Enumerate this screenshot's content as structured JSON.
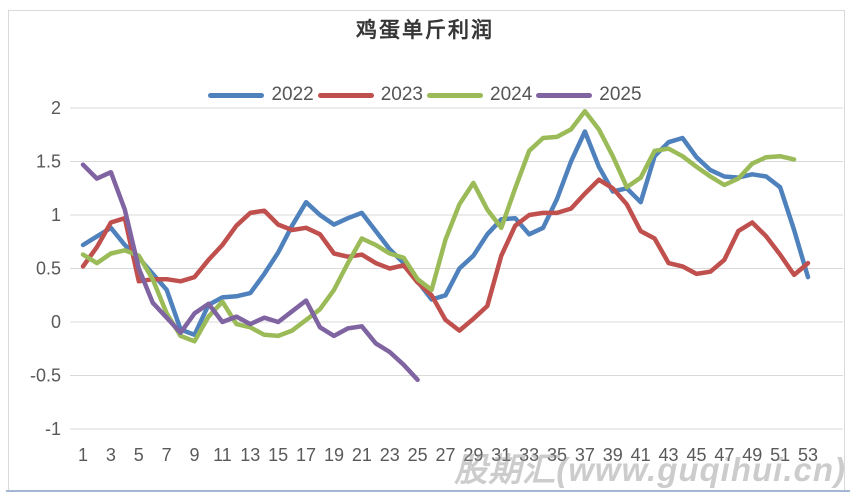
{
  "title": "鸡蛋单斤利润",
  "watermark": "股期汇(www.guqihui.cn)",
  "colors": {
    "grid": "#d9d9d9",
    "frame": "#d9d9d9",
    "bottom_border": "#a3b6d3",
    "tick_text": "#595959"
  },
  "chart_data": {
    "type": "line",
    "title": "鸡蛋单斤利润",
    "xlabel": "",
    "ylabel": "",
    "xlim": [
      1,
      53
    ],
    "ylim": [
      -1,
      2
    ],
    "xticks": [
      1,
      3,
      5,
      7,
      9,
      11,
      13,
      15,
      17,
      19,
      21,
      23,
      25,
      27,
      29,
      31,
      33,
      35,
      37,
      39,
      41,
      43,
      45,
      47,
      49,
      51,
      53
    ],
    "yticks": [
      2,
      1.5,
      1,
      0.5,
      0,
      -0.5,
      -1
    ],
    "grid": true,
    "legend_position": "top",
    "series": [
      {
        "name": "2022",
        "color": "#4F81BD",
        "points": [
          [
            1,
            0.72
          ],
          [
            2,
            0.8
          ],
          [
            3,
            0.88
          ],
          [
            4,
            0.72
          ],
          [
            5,
            0.6
          ],
          [
            6,
            0.45
          ],
          [
            7,
            0.3
          ],
          [
            8,
            -0.07
          ],
          [
            9,
            -0.12
          ],
          [
            10,
            0.16
          ],
          [
            11,
            0.23
          ],
          [
            12,
            0.24
          ],
          [
            13,
            0.27
          ],
          [
            14,
            0.45
          ],
          [
            15,
            0.65
          ],
          [
            16,
            0.9
          ],
          [
            17,
            1.12
          ],
          [
            18,
            1.0
          ],
          [
            19,
            0.91
          ],
          [
            20,
            0.97
          ],
          [
            21,
            1.02
          ],
          [
            22,
            0.85
          ],
          [
            23,
            0.68
          ],
          [
            24,
            0.55
          ],
          [
            25,
            0.38
          ],
          [
            26,
            0.21
          ],
          [
            27,
            0.25
          ],
          [
            28,
            0.5
          ],
          [
            29,
            0.62
          ],
          [
            30,
            0.82
          ],
          [
            31,
            0.96
          ],
          [
            32,
            0.97
          ],
          [
            33,
            0.82
          ],
          [
            34,
            0.88
          ],
          [
            35,
            1.15
          ],
          [
            36,
            1.5
          ],
          [
            37,
            1.78
          ],
          [
            38,
            1.45
          ],
          [
            39,
            1.22
          ],
          [
            40,
            1.25
          ],
          [
            41,
            1.12
          ],
          [
            42,
            1.55
          ],
          [
            43,
            1.68
          ],
          [
            44,
            1.72
          ],
          [
            45,
            1.54
          ],
          [
            46,
            1.42
          ],
          [
            47,
            1.36
          ],
          [
            48,
            1.35
          ],
          [
            49,
            1.38
          ],
          [
            50,
            1.36
          ],
          [
            51,
            1.26
          ],
          [
            52,
            0.86
          ],
          [
            53,
            0.42
          ]
        ]
      },
      {
        "name": "2023",
        "color": "#C0504D",
        "points": [
          [
            1,
            0.52
          ],
          [
            2,
            0.7
          ],
          [
            3,
            0.93
          ],
          [
            4,
            0.97
          ],
          [
            5,
            0.38
          ],
          [
            6,
            0.4
          ],
          [
            7,
            0.4
          ],
          [
            8,
            0.38
          ],
          [
            9,
            0.42
          ],
          [
            10,
            0.58
          ],
          [
            11,
            0.72
          ],
          [
            12,
            0.9
          ],
          [
            13,
            1.02
          ],
          [
            14,
            1.04
          ],
          [
            15,
            0.91
          ],
          [
            16,
            0.86
          ],
          [
            17,
            0.88
          ],
          [
            18,
            0.82
          ],
          [
            19,
            0.64
          ],
          [
            20,
            0.61
          ],
          [
            21,
            0.63
          ],
          [
            22,
            0.55
          ],
          [
            23,
            0.5
          ],
          [
            24,
            0.53
          ],
          [
            25,
            0.37
          ],
          [
            26,
            0.25
          ],
          [
            27,
            0.02
          ],
          [
            28,
            -0.08
          ],
          [
            29,
            0.03
          ],
          [
            30,
            0.15
          ],
          [
            31,
            0.62
          ],
          [
            32,
            0.9
          ],
          [
            33,
            1.0
          ],
          [
            34,
            1.02
          ],
          [
            35,
            1.02
          ],
          [
            36,
            1.06
          ],
          [
            37,
            1.2
          ],
          [
            38,
            1.33
          ],
          [
            39,
            1.25
          ],
          [
            40,
            1.1
          ],
          [
            41,
            0.85
          ],
          [
            42,
            0.78
          ],
          [
            43,
            0.55
          ],
          [
            44,
            0.52
          ],
          [
            45,
            0.45
          ],
          [
            46,
            0.47
          ],
          [
            47,
            0.58
          ],
          [
            48,
            0.85
          ],
          [
            49,
            0.93
          ],
          [
            50,
            0.8
          ],
          [
            51,
            0.63
          ],
          [
            52,
            0.44
          ],
          [
            53,
            0.55
          ]
        ]
      },
      {
        "name": "2024",
        "color": "#9BBB59",
        "points": [
          [
            1,
            0.63
          ],
          [
            2,
            0.55
          ],
          [
            3,
            0.64
          ],
          [
            4,
            0.67
          ],
          [
            5,
            0.62
          ],
          [
            6,
            0.4
          ],
          [
            7,
            0.08
          ],
          [
            8,
            -0.13
          ],
          [
            9,
            -0.18
          ],
          [
            10,
            0.05
          ],
          [
            11,
            0.19
          ],
          [
            12,
            -0.02
          ],
          [
            13,
            -0.05
          ],
          [
            14,
            -0.12
          ],
          [
            15,
            -0.13
          ],
          [
            16,
            -0.08
          ],
          [
            17,
            0.02
          ],
          [
            18,
            0.12
          ],
          [
            19,
            0.3
          ],
          [
            20,
            0.55
          ],
          [
            21,
            0.78
          ],
          [
            22,
            0.72
          ],
          [
            23,
            0.64
          ],
          [
            24,
            0.6
          ],
          [
            25,
            0.4
          ],
          [
            26,
            0.3
          ],
          [
            27,
            0.77
          ],
          [
            28,
            1.1
          ],
          [
            29,
            1.3
          ],
          [
            30,
            1.05
          ],
          [
            31,
            0.88
          ],
          [
            32,
            1.25
          ],
          [
            33,
            1.6
          ],
          [
            34,
            1.72
          ],
          [
            35,
            1.73
          ],
          [
            36,
            1.8
          ],
          [
            37,
            1.97
          ],
          [
            38,
            1.8
          ],
          [
            39,
            1.55
          ],
          [
            40,
            1.26
          ],
          [
            41,
            1.35
          ],
          [
            42,
            1.6
          ],
          [
            43,
            1.62
          ],
          [
            44,
            1.55
          ],
          [
            45,
            1.45
          ],
          [
            46,
            1.36
          ],
          [
            47,
            1.28
          ],
          [
            48,
            1.34
          ],
          [
            49,
            1.48
          ],
          [
            50,
            1.54
          ],
          [
            51,
            1.55
          ],
          [
            52,
            1.52
          ]
        ]
      },
      {
        "name": "2025",
        "color": "#8064A2",
        "points": [
          [
            1,
            1.47
          ],
          [
            2,
            1.34
          ],
          [
            3,
            1.4
          ],
          [
            4,
            1.05
          ],
          [
            5,
            0.5
          ],
          [
            6,
            0.18
          ],
          [
            7,
            0.04
          ],
          [
            8,
            -0.1
          ],
          [
            9,
            0.08
          ],
          [
            10,
            0.17
          ],
          [
            11,
            0.0
          ],
          [
            12,
            0.05
          ],
          [
            13,
            -0.02
          ],
          [
            14,
            0.04
          ],
          [
            15,
            0.0
          ],
          [
            16,
            0.1
          ],
          [
            17,
            0.2
          ],
          [
            18,
            -0.05
          ],
          [
            19,
            -0.13
          ],
          [
            20,
            -0.06
          ],
          [
            21,
            -0.04
          ],
          [
            22,
            -0.2
          ],
          [
            23,
            -0.28
          ],
          [
            24,
            -0.4
          ],
          [
            25,
            -0.54
          ]
        ]
      }
    ]
  }
}
